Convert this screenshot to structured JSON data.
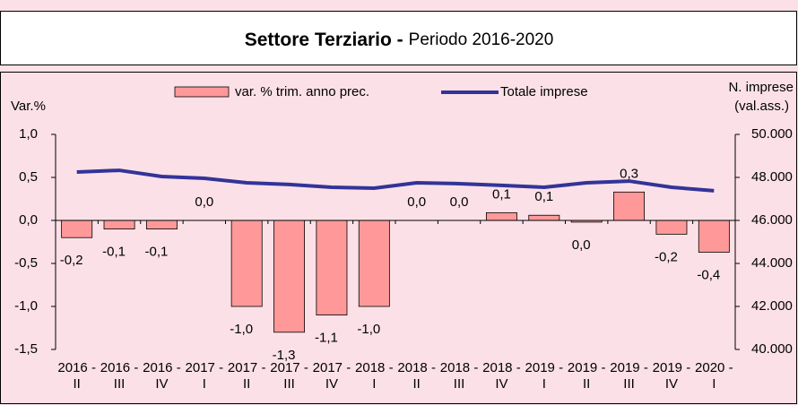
{
  "chart_data": {
    "type": "bar_line",
    "title": "Settore Terziario -",
    "subtitle": "Periodo 2016-2020",
    "ylabel": "Var.%",
    "y2label": [
      "N. imprese",
      "(val.ass.)"
    ],
    "categories": [
      "2016 - II",
      "2016 - III",
      "2016 - IV",
      "2017 - I",
      "2017 - II",
      "2017 - III",
      "2017 - IV",
      "2018 - I",
      "2018 - II",
      "2018 - III",
      "2018 - IV",
      "2019 - I",
      "2019 - II",
      "2019 - III",
      "2019 - IV",
      "2020 - I"
    ],
    "series": [
      {
        "name": "var. % trim. anno prec.",
        "color": "#ff9999",
        "type": "bar",
        "values": [
          -0.2,
          -0.1,
          -0.1,
          0,
          -1.0,
          -1.3,
          -1.1,
          -1.0,
          0,
          0,
          0.09,
          0.06,
          -0.02,
          0.33,
          -0.16,
          -0.37
        ],
        "value_labels": [
          "-0,2",
          "-0,1",
          "-0,1",
          "0,0",
          "-1,0",
          "-1,3",
          "-1,1",
          "-1,0",
          "0,0",
          "0,0",
          "0,1",
          "0,1",
          "0,0",
          "0,3",
          "-0,2",
          "-0,4"
        ]
      },
      {
        "name": "Totale imprese",
        "color": "#333399",
        "type": "line",
        "axis": "y2",
        "values": [
          48250,
          48330,
          48040,
          47960,
          47750,
          47670,
          47540,
          47500,
          47750,
          47710,
          47630,
          47540,
          47750,
          47830,
          47540,
          47380
        ]
      }
    ],
    "ylim": [
      -1.5,
      1.0
    ],
    "yticks": [
      {
        "value": -1.5,
        "label": "-1,5"
      },
      {
        "value": -1.0,
        "label": "-1,0"
      },
      {
        "value": -0.5,
        "label": "-0,5"
      },
      {
        "value": 0,
        "label": "0,0"
      },
      {
        "value": 0.5,
        "label": "0,5"
      },
      {
        "value": 1.0,
        "label": "1,0"
      }
    ],
    "y2lim": [
      40000,
      50000
    ],
    "y2ticks": [
      {
        "value": 40000,
        "label": "40.000"
      },
      {
        "value": 42000,
        "label": "42.000"
      },
      {
        "value": 44000,
        "label": "44.000"
      },
      {
        "value": 46000,
        "label": "46.000"
      },
      {
        "value": 48000,
        "label": "48.000"
      },
      {
        "value": 50000,
        "label": "50.000"
      }
    ]
  }
}
